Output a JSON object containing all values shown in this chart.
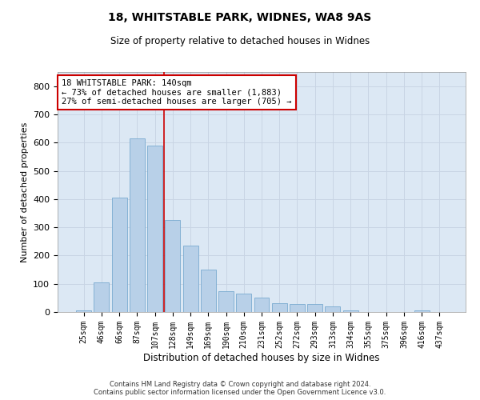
{
  "title1": "18, WHITSTABLE PARK, WIDNES, WA8 9AS",
  "title2": "Size of property relative to detached houses in Widnes",
  "xlabel": "Distribution of detached houses by size in Widnes",
  "ylabel": "Number of detached properties",
  "categories": [
    "25sqm",
    "46sqm",
    "66sqm",
    "87sqm",
    "107sqm",
    "128sqm",
    "149sqm",
    "169sqm",
    "190sqm",
    "210sqm",
    "231sqm",
    "252sqm",
    "272sqm",
    "293sqm",
    "313sqm",
    "334sqm",
    "355sqm",
    "375sqm",
    "396sqm",
    "416sqm",
    "437sqm"
  ],
  "values": [
    5,
    105,
    405,
    615,
    590,
    325,
    235,
    150,
    75,
    65,
    50,
    30,
    28,
    28,
    20,
    5,
    0,
    0,
    0,
    5,
    0
  ],
  "bar_color": "#b8d0e8",
  "bar_edge_color": "#7aaad0",
  "grid_color": "#c8d4e4",
  "background_color": "#dce8f4",
  "vline_pos": 4.5,
  "vline_color": "#cc0000",
  "annotation_line1": "18 WHITSTABLE PARK: 140sqm",
  "annotation_line2": "← 73% of detached houses are smaller (1,883)",
  "annotation_line3": "27% of semi-detached houses are larger (705) →",
  "annotation_box_color": "#ffffff",
  "annotation_box_edge": "#cc0000",
  "footer": "Contains HM Land Registry data © Crown copyright and database right 2024.\nContains public sector information licensed under the Open Government Licence v3.0.",
  "ylim": [
    0,
    850
  ],
  "yticks": [
    0,
    100,
    200,
    300,
    400,
    500,
    600,
    700,
    800
  ]
}
